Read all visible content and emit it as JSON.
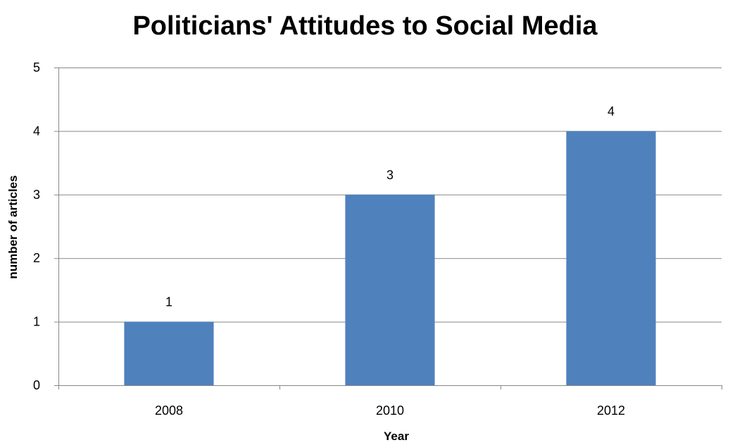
{
  "chart_data": {
    "type": "bar",
    "title": "Politicians' Attitudes to Social Media",
    "xlabel": "Year",
    "ylabel": "number of articles",
    "categories": [
      "2008",
      "2010",
      "2012"
    ],
    "values": [
      1,
      3,
      4
    ],
    "data_labels": [
      "1",
      "3",
      "4"
    ],
    "ylim": [
      0,
      5
    ],
    "yticks": [
      0,
      1,
      2,
      3,
      4,
      5
    ],
    "grid": "horizontal",
    "legend": "none",
    "bar_color": "#4F81BD",
    "grid_color": "#888888"
  }
}
